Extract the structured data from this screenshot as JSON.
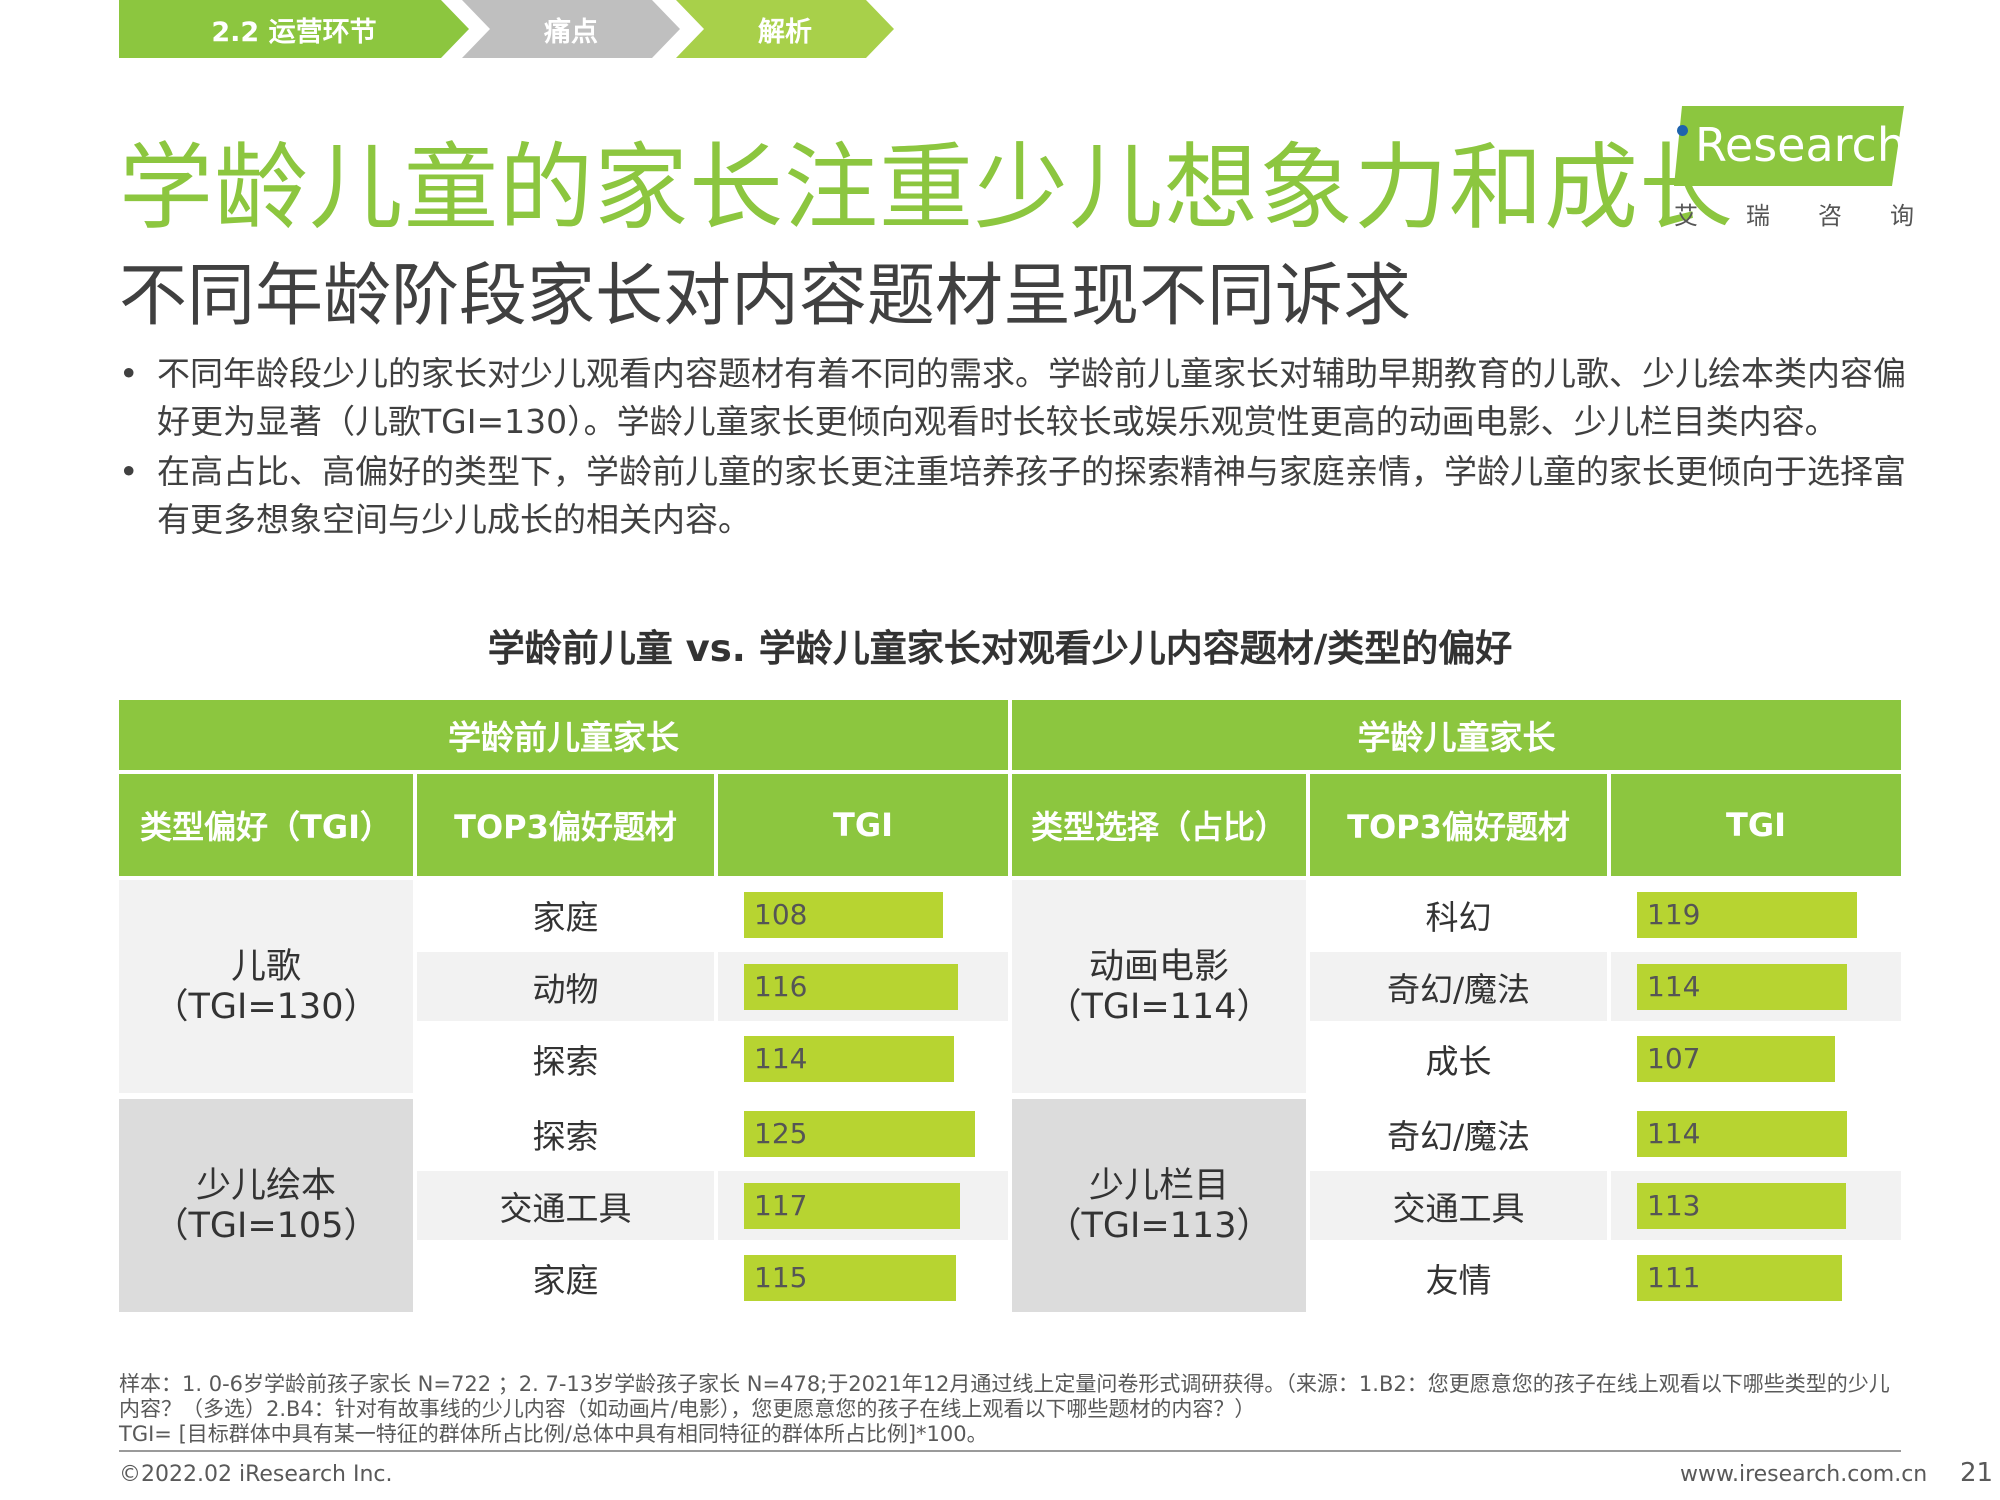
{
  "breadcrumb": {
    "section": "2.2  运营环节",
    "step2": "痛点",
    "step3": "解析"
  },
  "title": "学龄儿童的家长注重少儿想象力和成长",
  "subtitle": "不同年龄阶段家长对内容题材呈现不同诉求",
  "logo": {
    "text": "Research",
    "cn": [
      "艾",
      "瑞",
      "咨",
      "询"
    ]
  },
  "bullets": [
    "不同年龄段少儿的家长对少儿观看内容题材有着不同的需求。学龄前儿童家长对辅助早期教育的儿歌、少儿绘本类内容偏好更为显著（儿歌TGI=130）。学龄儿童家长更倾向观看时长较长或娱乐观赏性更高的动画电影、少儿栏目类内容。",
    "在高占比、高偏好的类型下，学龄前儿童的家长更注重培养孩子的探索精神与家庭亲情，学龄儿童的家长更倾向于选择富有更多想象空间与少儿成长的相关内容。"
  ],
  "table": {
    "title": "学龄前儿童 vs. 学龄儿童家长对观看少儿内容题材/类型的偏好",
    "left": {
      "group": "学龄前儿童家长",
      "col_type": "类型偏好（TGI）",
      "col_topic": "TOP3偏好题材",
      "col_tgi": "TGI",
      "blocks": [
        {
          "name": "儿歌",
          "tgi": "（TGI=130）",
          "rows": [
            {
              "topic": "家庭",
              "tgi": "108"
            },
            {
              "topic": "动物",
              "tgi": "116"
            },
            {
              "topic": "探索",
              "tgi": "114"
            }
          ]
        },
        {
          "name": "少儿绘本",
          "tgi": "（TGI=105）",
          "rows": [
            {
              "topic": "探索",
              "tgi": "125"
            },
            {
              "topic": "交通工具",
              "tgi": "117"
            },
            {
              "topic": "家庭",
              "tgi": "115"
            }
          ]
        }
      ]
    },
    "right": {
      "group": "学龄儿童家长",
      "col_type": "类型选择（占比）",
      "col_topic": "TOP3偏好题材",
      "col_tgi": "TGI",
      "blocks": [
        {
          "name": "动画电影",
          "tgi": "（TGI=114）",
          "rows": [
            {
              "topic": "科幻",
              "tgi": "119"
            },
            {
              "topic": "奇幻/魔法",
              "tgi": "114"
            },
            {
              "topic": "成长",
              "tgi": "107"
            }
          ]
        },
        {
          "name": "少儿栏目",
          "tgi": "（TGI=113）",
          "rows": [
            {
              "topic": "奇幻/魔法",
              "tgi": "114"
            },
            {
              "topic": "交通工具",
              "tgi": "113"
            },
            {
              "topic": "友情",
              "tgi": "111"
            }
          ]
        }
      ]
    }
  },
  "colors": {
    "green": "#8cc63f",
    "bar": "#b7d431",
    "grey_block": "#dcdcdc",
    "light_row": "#f2f2f2"
  },
  "notes": [
    "样本：1. 0-6岁学龄前孩子家长 N=722 ；2. 7-13岁学龄孩子家长 N=478;于2021年12月通过线上定量问卷形式调研获得。（来源：1.B2：您更愿意您的孩子在线上观看以下哪些类型的少儿内容？（多选）2.B4：针对有故事线的少儿内容（如动画片/电影），您更愿意您的孩子在线上观看以下哪些题材的内容？）",
    "TGI= [目标群体中具有某一特征的群体所占比例/总体中具有相同特征的群体所占比例]*100。"
  ],
  "footer": {
    "copyright": "©2022.02 iResearch Inc.",
    "website": "www.iresearch.com.cn",
    "page": "21"
  }
}
